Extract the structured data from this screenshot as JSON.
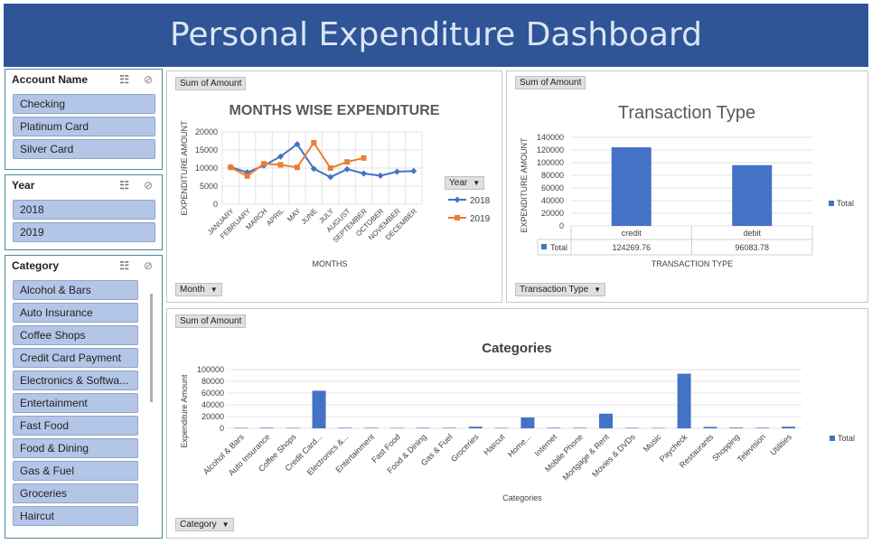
{
  "title": "Personal Expenditure Dashboard",
  "slicers": {
    "account": {
      "title": "Account Name",
      "items": [
        "Checking",
        "Platinum Card",
        "Silver Card"
      ]
    },
    "year": {
      "title": "Year",
      "items": [
        "2018",
        "2019"
      ]
    },
    "category": {
      "title": "Category",
      "items": [
        "Alcohol & Bars",
        "Auto Insurance",
        "Coffee Shops",
        "Credit Card Payment",
        "Electronics & Softwa...",
        "Entertainment",
        "Fast Food",
        "Food & Dining",
        "Gas & Fuel",
        "Groceries",
        "Haircut"
      ]
    }
  },
  "field_buttons": {
    "sum_of_amount": "Sum of Amount",
    "month": "Month",
    "year": "Year",
    "transaction_type": "Transaction Type",
    "category": "Category"
  },
  "icons": {
    "multi_select": "multi-select-icon",
    "clear_filter": "clear-filter-icon",
    "dropdown": "dropdown-arrow-icon"
  },
  "colors": {
    "banner": "#2f5597",
    "series_2018": "#4472c4",
    "series_2019": "#ed7d31",
    "bar": "#4472c4",
    "slicer_item": "#b4c6e7"
  },
  "chart_data": [
    {
      "type": "line",
      "title": "MONTHS WISE EXPENDITURE",
      "xlabel": "MONTHS",
      "ylabel": "EXPENDITURE AMOUNT",
      "legend_title": "Year",
      "legend_position": "right",
      "categories": [
        "JANUARY",
        "FEBRUARY",
        "MARCH",
        "APRIL",
        "MAY",
        "JUNE",
        "JULY",
        "AUGUST",
        "SEPTEMBER",
        "OCTOBER",
        "NOVEMBER",
        "DECEMBER"
      ],
      "ylim": [
        0,
        20000
      ],
      "yticks": [
        "0",
        "5000",
        "10000",
        "15000",
        "20000"
      ],
      "grid": true,
      "series": [
        {
          "name": "2018",
          "color": "#4472c4",
          "marker": "diamond",
          "values": [
            10300,
            8800,
            10700,
            13200,
            16600,
            9800,
            7500,
            9700,
            8500,
            7900,
            9000,
            9200
          ]
        },
        {
          "name": "2019",
          "color": "#ed7d31",
          "marker": "square",
          "values": [
            10200,
            7800,
            11200,
            10900,
            10200,
            17000,
            10000,
            11700,
            12800,
            null,
            null,
            null
          ]
        }
      ]
    },
    {
      "type": "bar",
      "title": "Transaction Type",
      "xlabel": "TRANSACTION TYPE",
      "ylabel": "EXPENDITURE AMOUNT",
      "categories": [
        "credit",
        "debit"
      ],
      "ylim": [
        0,
        140000
      ],
      "yticks": [
        "0",
        "20000",
        "40000",
        "60000",
        "80000",
        "100000",
        "120000",
        "140000"
      ],
      "grid": true,
      "series": [
        {
          "name": "Total",
          "values": [
            124269.76,
            96083.78
          ]
        }
      ],
      "table": {
        "row_label": "Total",
        "values": [
          "124269.76",
          "96083.78"
        ]
      },
      "legend_position": "right"
    },
    {
      "type": "bar",
      "title": "Categories",
      "xlabel": "Categories",
      "ylabel": "Expenditure Amount",
      "categories": [
        "Alcohol & Bars",
        "Auto Insurance",
        "Coffee Shops",
        "Credit Card...",
        "Electronics &...",
        "Entertainment",
        "Fast Food",
        "Food & Dining",
        "Gas & Fuel",
        "Groceries",
        "Haircut",
        "Home...",
        "Internet",
        "Mobile Phone",
        "Mortgage & Rent",
        "Movies & DVDs",
        "Music",
        "Paycheck",
        "Restaurants",
        "Shopping",
        "Television",
        "Utilities"
      ],
      "ylim": [
        0,
        100000
      ],
      "yticks": [
        "0",
        "20000",
        "40000",
        "60000",
        "80000",
        "100000"
      ],
      "grid": true,
      "series": [
        {
          "name": "Total",
          "values": [
            800,
            1000,
            800,
            64000,
            1000,
            900,
            700,
            900,
            900,
            2800,
            800,
            18500,
            1000,
            900,
            25000,
            900,
            700,
            93000,
            2500,
            1200,
            1000,
            2800
          ]
        }
      ],
      "legend_position": "right"
    }
  ]
}
